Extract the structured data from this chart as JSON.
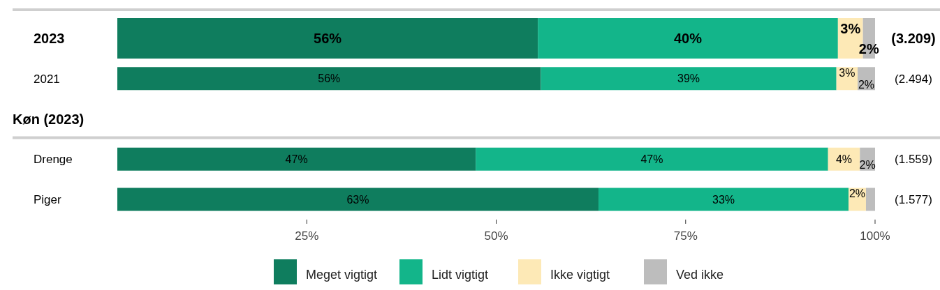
{
  "chart_data": {
    "type": "bar",
    "orientation": "horizontal",
    "stacked": true,
    "categories": [
      "2023",
      "2021",
      "Køn (2023)",
      "Drenge",
      "Piger"
    ],
    "series": [
      {
        "name": "Meget vigtigt",
        "color": "#0f7d5e",
        "values": [
          55.5,
          55.9,
          null,
          47.3,
          63.5
        ],
        "value_labels": [
          "56%",
          "56%",
          null,
          "47%",
          "63%"
        ]
      },
      {
        "name": "Lidt vigtigt",
        "color": "#13b58a",
        "values": [
          39.6,
          39.0,
          null,
          46.5,
          33.0
        ],
        "value_labels": [
          "40%",
          "39%",
          null,
          "47%",
          "33%"
        ]
      },
      {
        "name": "Ikke vigtigt",
        "color": "#fde9b6",
        "values": [
          3.3,
          2.8,
          null,
          4.2,
          2.3
        ],
        "value_labels": [
          "3%",
          "3%",
          null,
          "4%",
          "2%"
        ]
      },
      {
        "name": "Ved ikke",
        "color": "#bdbdbd",
        "values": [
          1.6,
          2.3,
          null,
          2.0,
          1.2
        ],
        "value_labels": [
          "2%",
          "2%",
          null,
          "2%",
          null
        ]
      }
    ],
    "xlim": [
      0,
      100
    ],
    "xticks": [
      {
        "value": 25,
        "label": "25%"
      },
      {
        "value": 50,
        "label": "50%"
      },
      {
        "value": 75,
        "label": "75%"
      },
      {
        "value": 100,
        "label": "100%"
      }
    ],
    "annotations": [
      "(3.209)",
      "(2.494)",
      "(1.559)",
      "(1.577)"
    ],
    "legend": "bottom"
  }
}
